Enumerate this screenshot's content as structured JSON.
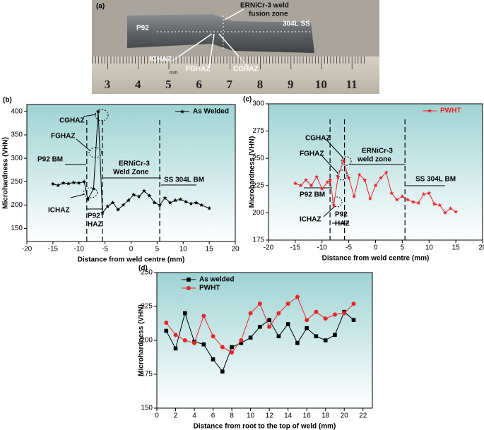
{
  "photo": {
    "label": "(a)",
    "texts": [
      "ERNiCr-3 weld",
      "fusion zone",
      "P92",
      "304L SS",
      "ICHAZ",
      "FGHAZ",
      "CGHAZ",
      "mm"
    ],
    "ruler_labels": [
      3,
      4,
      5,
      6,
      7,
      8,
      9,
      10,
      11
    ]
  },
  "chart_data": [
    {
      "type": "line",
      "panel": "(b)",
      "xlabel": "Distance from weld centre (mm)",
      "ylabel": "Microhardness (VHN)",
      "annotations": [
        "CGHAZ",
        "FGHAZ",
        "P92 BM",
        "ERNiCr-3",
        "Weld Zone",
        "SS 304L BM",
        "ICHAZ",
        "P92",
        "HAZ"
      ],
      "xlim": [
        -20,
        20
      ],
      "xticks": [
        -20,
        -15,
        -10,
        -5,
        0,
        5,
        10,
        15,
        20
      ],
      "ylim": [
        122,
        415
      ],
      "yticks": [
        150,
        200,
        250,
        300,
        350,
        400
      ],
      "vlines": [
        -8.5,
        -5.5,
        5.5
      ],
      "legend": "upper right",
      "x": [
        -15,
        -14,
        -13,
        -12,
        -11,
        -10,
        -9,
        -8.3,
        -7.2,
        -6.3,
        -5.5,
        -4.5,
        -3.5,
        -2.5,
        -1.5,
        -0.5,
        0.5,
        1.5,
        2.5,
        3.5,
        4.5,
        5.5,
        6.5,
        7.5,
        8.5,
        9.5,
        10.5,
        11.5,
        12.5,
        13.5,
        15
      ],
      "series": [
        {
          "name": "As Welded",
          "color": "#000000",
          "marker": "star",
          "values": [
            245,
            242,
            247,
            246,
            248,
            247,
            250,
            212,
            235,
            400,
            183,
            197,
            205,
            190,
            200,
            210,
            222,
            218,
            230,
            220,
            205,
            200,
            215,
            205,
            210,
            212,
            207,
            203,
            205,
            200,
            193
          ]
        }
      ]
    },
    {
      "type": "line",
      "panel": "(c)",
      "xlabel": "Distance from weld centre (mm)",
      "ylabel": "Microhardness (VHN)",
      "annotations": [
        "CGHAZ",
        "FGHAZ",
        "ERNiCr-3",
        "weld zone",
        "SS 304L BM",
        "P92 BM",
        "ICHAZ",
        "P92",
        "HAZ"
      ],
      "xlim": [
        -20,
        20
      ],
      "xticks": [
        -20,
        -15,
        -10,
        -5,
        0,
        5,
        10,
        15,
        20
      ],
      "ylim": [
        175,
        300
      ],
      "yticks": [
        175,
        200,
        225,
        250,
        275,
        300
      ],
      "vlines": [
        -8.5,
        -5.8,
        5.5
      ],
      "legend": "upper right",
      "x": [
        -15,
        -14,
        -13,
        -12,
        -11,
        -10,
        -9,
        -8.5,
        -7.8,
        -7,
        -6,
        -5,
        -4,
        -3,
        -2,
        -1,
        0,
        1,
        2,
        3,
        4,
        5,
        6,
        7,
        8,
        9,
        10,
        11,
        12,
        13,
        14,
        15
      ],
      "series": [
        {
          "name": "PWHT",
          "color": "#e8252a",
          "marker": "star",
          "values": [
            227,
            225,
            230,
            225,
            233,
            222,
            228,
            230,
            207,
            233,
            248,
            232,
            215,
            235,
            230,
            213,
            225,
            232,
            237,
            218,
            212,
            215,
            212,
            210,
            209,
            217,
            218,
            208,
            207,
            200,
            204,
            201
          ]
        }
      ]
    },
    {
      "type": "line",
      "panel": "(d)",
      "xlabel": "Distance from root to the top of weld (mm)",
      "ylabel": "Microhardness (VHN)",
      "annotations": [],
      "xlim": [
        0,
        23
      ],
      "xticks": [
        0,
        2,
        4,
        6,
        8,
        10,
        12,
        14,
        16,
        18,
        20,
        22
      ],
      "ylim": [
        150,
        250
      ],
      "yticks": [
        150,
        175,
        200,
        225,
        250
      ],
      "vlines": [],
      "legend": "upper left",
      "x": [
        1,
        2,
        3,
        4,
        5,
        6,
        7,
        8,
        9,
        10,
        11,
        12,
        13,
        14,
        15,
        16,
        17,
        18,
        19,
        20,
        21
      ],
      "series": [
        {
          "name": "As welded",
          "color": "#000000",
          "marker": "square",
          "values": [
            207,
            194,
            220,
            199,
            197,
            186,
            177,
            195,
            198,
            202,
            210,
            215,
            203,
            212,
            198,
            209,
            203,
            200,
            204,
            221,
            215
          ]
        },
        {
          "name": "PWHT",
          "color": "#e8252a",
          "marker": "circle",
          "values": [
            213,
            204,
            200,
            198,
            218,
            203,
            195,
            191,
            200,
            220,
            227,
            210,
            220,
            227,
            232,
            215,
            221,
            216,
            219,
            220,
            227
          ]
        }
      ]
    }
  ]
}
